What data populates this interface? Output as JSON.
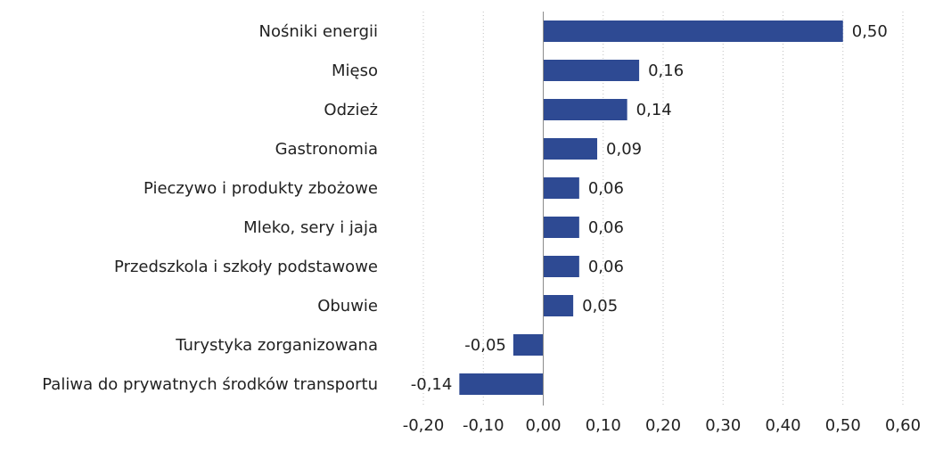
{
  "chart_data": {
    "type": "bar",
    "orientation": "horizontal",
    "categories": [
      "Nośniki energii",
      "Mięso",
      "Odzież",
      "Gastronomia",
      "Pieczywo i produkty zbożowe",
      "Mleko, sery i jaja",
      "Przedszkola i szkoły podstawowe",
      "Obuwie",
      "Turystyka zorganizowana",
      "Paliwa do prywatnych środków transportu"
    ],
    "values": [
      0.5,
      0.16,
      0.14,
      0.09,
      0.06,
      0.06,
      0.06,
      0.05,
      -0.05,
      -0.14
    ],
    "value_labels": [
      "0,50",
      "0,16",
      "0,14",
      "0,09",
      "0,06",
      "0,06",
      "0,06",
      "0,05",
      "-0,05",
      "-0,14"
    ],
    "x_ticks": [
      -0.2,
      -0.1,
      0.0,
      0.1,
      0.2,
      0.3,
      0.4,
      0.5,
      0.6
    ],
    "x_tick_labels": [
      "-0,20",
      "-0,10",
      "0,00",
      "0,10",
      "0,20",
      "0,30",
      "0,40",
      "0,50",
      "0,60"
    ],
    "xlim": [
      -0.2,
      0.6
    ],
    "title": "",
    "xlabel": "",
    "ylabel": "",
    "grid": "vertical dotted",
    "legend": "none",
    "bar_color": "#2e4a93"
  }
}
